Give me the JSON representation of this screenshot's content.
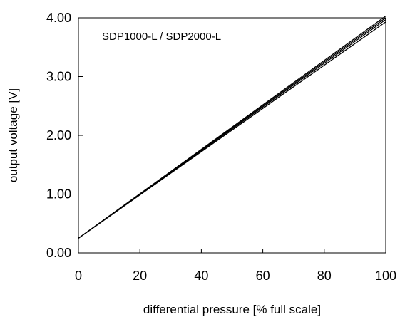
{
  "chart_data": {
    "type": "line",
    "xlabel": "differential pressure [% full scale]",
    "ylabel": "output voltage [V]",
    "annotation": "SDP1000-L / SDP2000-L",
    "xlim": [
      0,
      100
    ],
    "ylim": [
      0,
      4
    ],
    "xticks": [
      "0",
      "20",
      "40",
      "60",
      "80",
      "100"
    ],
    "yticks": [
      "0.00",
      "1.00",
      "2.00",
      "3.00",
      "4.00"
    ],
    "grid": false,
    "series": [
      {
        "x": [
          0,
          100
        ],
        "y": [
          0.25,
          3.93
        ]
      },
      {
        "x": [
          0,
          100
        ],
        "y": [
          0.25,
          3.97
        ]
      },
      {
        "x": [
          0,
          100
        ],
        "y": [
          0.25,
          4.0
        ]
      },
      {
        "x": [
          0,
          100
        ],
        "y": [
          0.25,
          4.03
        ]
      }
    ],
    "line_color": "#000000"
  }
}
